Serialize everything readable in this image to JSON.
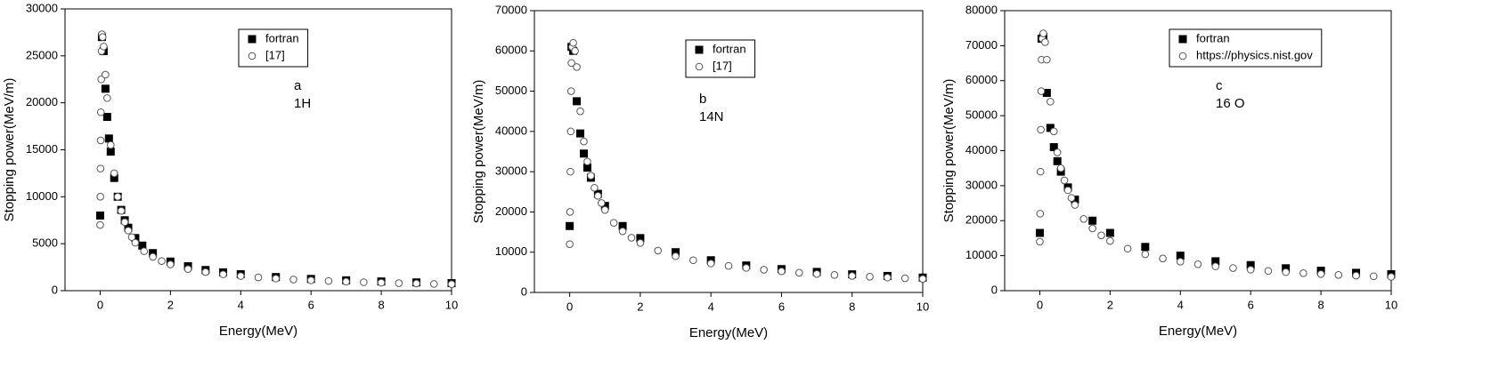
{
  "chart_data": [
    {
      "type": "scatter",
      "panel": "a",
      "xlabel": "Energy(MeV)",
      "ylabel": "Stopping power(MeV/m)",
      "annotations": [
        "a",
        "1H"
      ],
      "xlim": [
        -1,
        10
      ],
      "xticks": [
        0,
        2,
        4,
        6,
        8,
        10
      ],
      "ylim": [
        0,
        30000
      ],
      "yticks": [
        0,
        5000,
        10000,
        15000,
        20000,
        25000,
        30000
      ],
      "legend": "upper center",
      "series": [
        {
          "name": "fortran",
          "marker": "square",
          "color": "#000000",
          "x": [
            0,
            0.05,
            0.1,
            0.15,
            0.2,
            0.25,
            0.3,
            0.4,
            0.5,
            0.6,
            0.7,
            0.8,
            1,
            1.2,
            1.5,
            2,
            2.5,
            3,
            3.5,
            4,
            5,
            6,
            7,
            8,
            9,
            10
          ],
          "values": [
            8000,
            27000,
            25500,
            21500,
            18500,
            16200,
            14800,
            12000,
            10000,
            8600,
            7500,
            6700,
            5600,
            4800,
            4000,
            3100,
            2600,
            2200,
            1950,
            1750,
            1450,
            1250,
            1100,
            980,
            880,
            800
          ]
        },
        {
          "name": "[17]",
          "marker": "circle",
          "color": "#555555",
          "x": [
            0,
            0.005,
            0.01,
            0.015,
            0.02,
            0.03,
            0.04,
            0.05,
            0.07,
            0.1,
            0.15,
            0.2,
            0.3,
            0.4,
            0.5,
            0.6,
            0.7,
            0.8,
            0.9,
            1,
            1.25,
            1.5,
            1.75,
            2,
            2.5,
            3,
            3.5,
            4,
            4.5,
            5,
            5.5,
            6,
            6.5,
            7,
            7.5,
            8,
            8.5,
            9,
            9.5,
            10
          ],
          "values": [
            7000,
            10000,
            13000,
            16000,
            19000,
            22500,
            25500,
            27300,
            27000,
            26000,
            23000,
            20500,
            15500,
            12500,
            10000,
            8500,
            7300,
            6400,
            5700,
            5100,
            4200,
            3600,
            3150,
            2800,
            2300,
            1980,
            1740,
            1560,
            1410,
            1290,
            1190,
            1100,
            1030,
            960,
            900,
            850,
            800,
            760,
            720,
            690
          ]
        }
      ]
    },
    {
      "type": "scatter",
      "panel": "b",
      "xlabel": "Energy(MeV)",
      "ylabel": "Stopping power(MeV/m)",
      "annotations": [
        "b",
        "14N"
      ],
      "xlim": [
        -1,
        10
      ],
      "xticks": [
        0,
        2,
        4,
        6,
        8,
        10
      ],
      "ylim": [
        0,
        70000
      ],
      "yticks": [
        0,
        10000,
        20000,
        30000,
        40000,
        50000,
        60000,
        70000
      ],
      "legend": "upper center",
      "series": [
        {
          "name": "fortran",
          "marker": "square",
          "color": "#000000",
          "x": [
            0,
            0.05,
            0.1,
            0.2,
            0.3,
            0.4,
            0.5,
            0.6,
            0.8,
            1,
            1.5,
            2,
            3,
            4,
            5,
            6,
            7,
            8,
            9,
            10
          ],
          "values": [
            16500,
            61000,
            60000,
            47500,
            39500,
            34500,
            31000,
            28500,
            24500,
            21500,
            16500,
            13500,
            10000,
            8000,
            6700,
            5800,
            5100,
            4500,
            4100,
            3700
          ]
        },
        {
          "name": "[17]",
          "marker": "circle",
          "color": "#555555",
          "x": [
            0,
            0.01,
            0.02,
            0.03,
            0.04,
            0.05,
            0.07,
            0.1,
            0.15,
            0.2,
            0.3,
            0.4,
            0.5,
            0.6,
            0.7,
            0.8,
            0.9,
            1,
            1.25,
            1.5,
            1.75,
            2,
            2.5,
            3,
            3.5,
            4,
            4.5,
            5,
            5.5,
            6,
            6.5,
            7,
            7.5,
            8,
            8.5,
            9,
            9.5,
            10
          ],
          "values": [
            12000,
            20000,
            30000,
            40000,
            50000,
            57000,
            61000,
            62000,
            60000,
            56000,
            45000,
            37500,
            32500,
            29000,
            26000,
            24000,
            22200,
            20500,
            17300,
            15200,
            13600,
            12300,
            10400,
            9000,
            8000,
            7200,
            6600,
            6100,
            5650,
            5250,
            4900,
            4600,
            4350,
            4100,
            3900,
            3700,
            3520,
            3360
          ]
        }
      ]
    },
    {
      "type": "scatter",
      "panel": "c",
      "xlabel": "Energy(MeV)",
      "ylabel": "Stopping power(MeV/m)",
      "annotations": [
        "c",
        "16 O"
      ],
      "xlim": [
        -1,
        10
      ],
      "xticks": [
        0,
        2,
        4,
        6,
        8,
        10
      ],
      "ylim": [
        0,
        80000
      ],
      "yticks": [
        0,
        10000,
        20000,
        30000,
        40000,
        50000,
        60000,
        70000,
        80000
      ],
      "legend": "upper center",
      "series": [
        {
          "name": "fortran",
          "marker": "square",
          "color": "#000000",
          "x": [
            0,
            0.05,
            0.1,
            0.2,
            0.3,
            0.4,
            0.5,
            0.6,
            0.8,
            1,
            1.5,
            2,
            3,
            4,
            5,
            6,
            7,
            8,
            9,
            10
          ],
          "values": [
            16500,
            72000,
            72500,
            56500,
            46500,
            41000,
            37000,
            34000,
            29500,
            26000,
            20000,
            16500,
            12500,
            10000,
            8400,
            7300,
            6400,
            5700,
            5100,
            4700
          ]
        },
        {
          "name": "https://physics.nist.gov",
          "marker": "circle",
          "color": "#555555",
          "x": [
            0,
            0.01,
            0.02,
            0.03,
            0.04,
            0.05,
            0.07,
            0.1,
            0.15,
            0.2,
            0.3,
            0.4,
            0.5,
            0.6,
            0.7,
            0.8,
            0.9,
            1,
            1.25,
            1.5,
            1.75,
            2,
            2.5,
            3,
            3.5,
            4,
            4.5,
            5,
            5.5,
            6,
            6.5,
            7,
            7.5,
            8,
            8.5,
            9,
            9.5,
            10
          ],
          "values": [
            14000,
            22000,
            34000,
            46000,
            57000,
            66000,
            72000,
            73500,
            71000,
            66000,
            54000,
            45500,
            39500,
            35000,
            31500,
            28700,
            26500,
            24500,
            20500,
            17800,
            15800,
            14200,
            12000,
            10400,
            9200,
            8300,
            7550,
            6950,
            6450,
            6000,
            5650,
            5300,
            5000,
            4750,
            4500,
            4300,
            4100,
            3950
          ]
        }
      ]
    }
  ]
}
